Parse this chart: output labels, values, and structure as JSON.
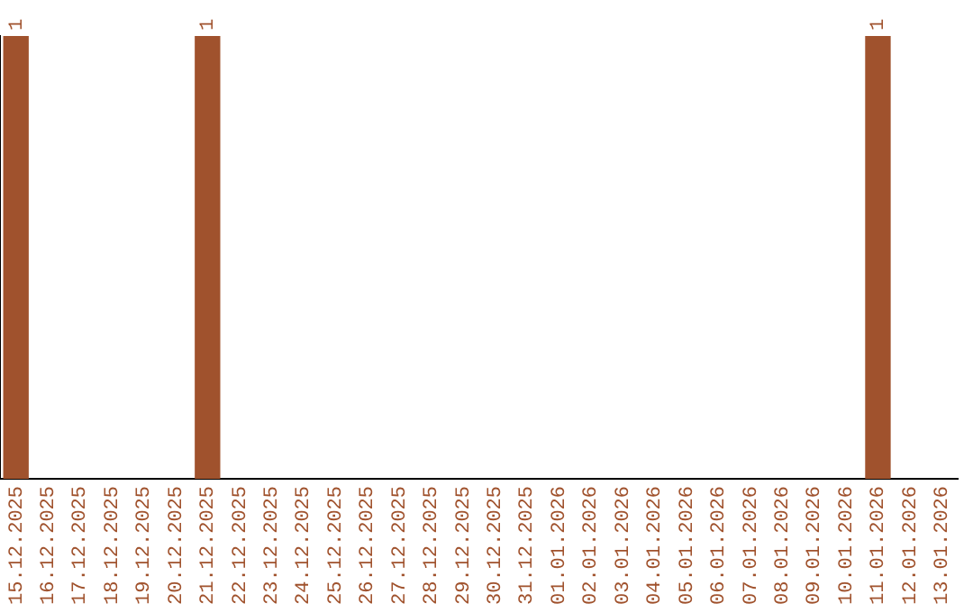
{
  "chart_data": {
    "type": "bar",
    "ylim": [
      0,
      1
    ],
    "tick_labels": "x",
    "color": "#a0522d",
    "categories": [
      "15.12.2025",
      "16.12.2025",
      "17.12.2025",
      "18.12.2025",
      "19.12.2025",
      "20.12.2025",
      "21.12.2025",
      "22.12.2025",
      "23.12.2025",
      "24.12.2025",
      "25.12.2025",
      "26.12.2025",
      "27.12.2025",
      "28.12.2025",
      "29.12.2025",
      "30.12.2025",
      "31.12.2025",
      "01.01.2026",
      "02.01.2026",
      "03.01.2026",
      "04.01.2026",
      "05.01.2026",
      "06.01.2026",
      "07.01.2026",
      "08.01.2026",
      "09.01.2026",
      "10.01.2026",
      "11.01.2026",
      "12.01.2026",
      "13.01.2026"
    ],
    "values": [
      1,
      0,
      0,
      0,
      0,
      0,
      1,
      0,
      0,
      0,
      0,
      0,
      0,
      0,
      0,
      0,
      0,
      0,
      0,
      0,
      0,
      0,
      0,
      0,
      0,
      0,
      0,
      1,
      0,
      0
    ],
    "value_labels": [
      "1",
      null,
      null,
      null,
      null,
      null,
      "1",
      null,
      null,
      null,
      null,
      null,
      null,
      null,
      null,
      null,
      null,
      null,
      null,
      null,
      null,
      null,
      null,
      null,
      null,
      null,
      null,
      "1",
      null,
      null
    ],
    "grid": false,
    "legend": false
  }
}
